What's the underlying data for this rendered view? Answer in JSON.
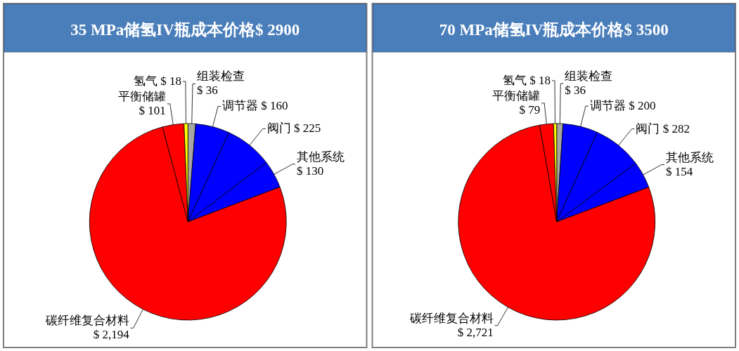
{
  "chart_data": [
    {
      "type": "pie",
      "title": "35 MPa储氢IV瓶成本价格$ 2900",
      "categories": [
        "组装检查",
        "调节器",
        "阀门",
        "其他系统",
        "碳纤维复合材料",
        "平衡储罐",
        "氢气"
      ],
      "values": [
        36,
        160,
        225,
        130,
        2194,
        101,
        18
      ],
      "colors": [
        "#a6a6a6",
        "#0000ff",
        "#0000ff",
        "#0000ff",
        "#ff0000",
        "#ff0000",
        "#ffff00"
      ],
      "value_labels": [
        "$ 36",
        "$ 160",
        "$ 225",
        "$ 130",
        "$ 2,194",
        "$ 101",
        "$ 18"
      ]
    },
    {
      "type": "pie",
      "title": "70 MPa储氢IV瓶成本价格$ 3500",
      "categories": [
        "组装检查",
        "调节器",
        "阀门",
        "其他系统",
        "碳纤维复合材料",
        "平衡储罐",
        "氢气"
      ],
      "values": [
        36,
        200,
        282,
        154,
        2721,
        79,
        18
      ],
      "colors": [
        "#a6a6a6",
        "#0000ff",
        "#0000ff",
        "#0000ff",
        "#ff0000",
        "#ff0000",
        "#ffff00"
      ],
      "value_labels": [
        "$ 36",
        "$ 200",
        "$ 282",
        "$ 154",
        "$ 2,721",
        "$ 79",
        "$ 18"
      ]
    }
  ]
}
